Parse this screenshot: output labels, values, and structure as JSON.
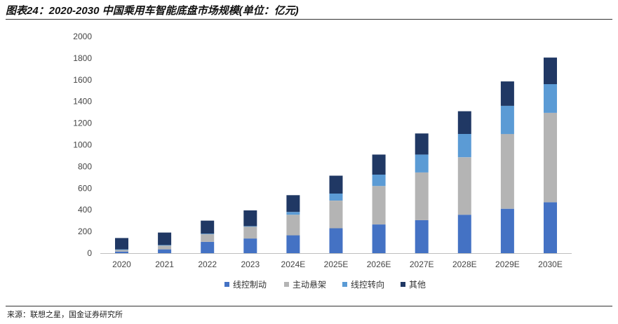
{
  "header": {
    "title": "图表24：2020-2030 中国乘用车智能底盘市场规模(单位：亿元)"
  },
  "footer": {
    "source": "来源：联想之星，国金证券研究所"
  },
  "chart_data": {
    "type": "bar",
    "stacked": true,
    "title": "2020-2030 中国乘用车智能底盘市场规模(单位：亿元)",
    "xlabel": "",
    "ylabel": "",
    "ylim": [
      0,
      2000
    ],
    "yticks": [
      0,
      200,
      400,
      600,
      800,
      1000,
      1200,
      1400,
      1600,
      1800,
      2000
    ],
    "grid": false,
    "legend_position": "bottom",
    "categories": [
      "2020",
      "2021",
      "2022",
      "2023",
      "2024E",
      "2025E",
      "2026E",
      "2027E",
      "2028E",
      "2029E",
      "2030E"
    ],
    "series": [
      {
        "name": "线控制动",
        "color": "#4472c4",
        "values": [
          15,
          35,
          105,
          135,
          165,
          230,
          265,
          305,
          355,
          410,
          470
        ]
      },
      {
        "name": "主动悬架",
        "color": "#b4b4b4",
        "values": [
          15,
          35,
          70,
          110,
          190,
          255,
          355,
          440,
          530,
          690,
          825
        ]
      },
      {
        "name": "线控转向",
        "color": "#5b9bd5",
        "values": [
          5,
          5,
          5,
          5,
          25,
          65,
          105,
          165,
          215,
          260,
          265
        ]
      },
      {
        "name": "其他",
        "color": "#203864",
        "values": [
          105,
          115,
          120,
          145,
          155,
          165,
          185,
          195,
          210,
          225,
          245
        ]
      }
    ]
  }
}
